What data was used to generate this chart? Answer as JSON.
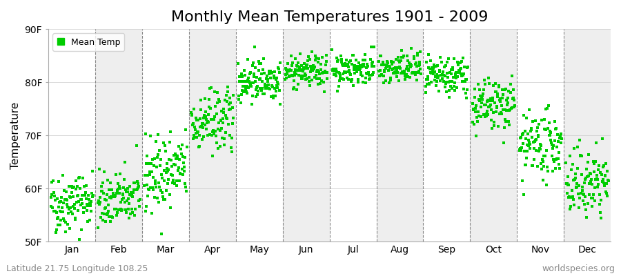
{
  "title": "Monthly Mean Temperatures 1901 - 2009",
  "ylabel": "Temperature",
  "ylim": [
    50,
    90
  ],
  "yticks": [
    50,
    60,
    70,
    80,
    90
  ],
  "ytick_labels": [
    "50F",
    "60F",
    "70F",
    "80F",
    "90F"
  ],
  "month_labels": [
    "Jan",
    "Feb",
    "Mar",
    "Apr",
    "May",
    "Jun",
    "Jul",
    "Aug",
    "Sep",
    "Oct",
    "Nov",
    "Dec"
  ],
  "marker_color": "#00cc00",
  "marker_size": 2.5,
  "background_color": "#ffffff",
  "plot_bg_color": "#ffffff",
  "band_color_odd": "#ffffff",
  "band_color_even": "#eeeeee",
  "legend_label": "Mean Temp",
  "subtitle_left": "Latitude 21.75 Longitude 108.25",
  "subtitle_right": "worldspecies.org",
  "title_fontsize": 16,
  "label_fontsize": 11,
  "tick_fontsize": 10,
  "monthly_means": [
    57.5,
    58.0,
    63.0,
    72.5,
    80.5,
    82.0,
    82.5,
    82.5,
    81.0,
    75.5,
    68.0,
    61.0
  ],
  "monthly_stds": [
    2.8,
    2.5,
    3.5,
    3.0,
    2.0,
    1.5,
    1.5,
    1.5,
    1.8,
    2.5,
    3.0,
    3.2
  ],
  "monthly_trends": [
    0.01,
    0.01,
    0.015,
    0.01,
    0.005,
    0.005,
    0.005,
    0.005,
    0.008,
    0.01,
    0.012,
    0.01
  ],
  "n_years": 109,
  "seed": 42
}
